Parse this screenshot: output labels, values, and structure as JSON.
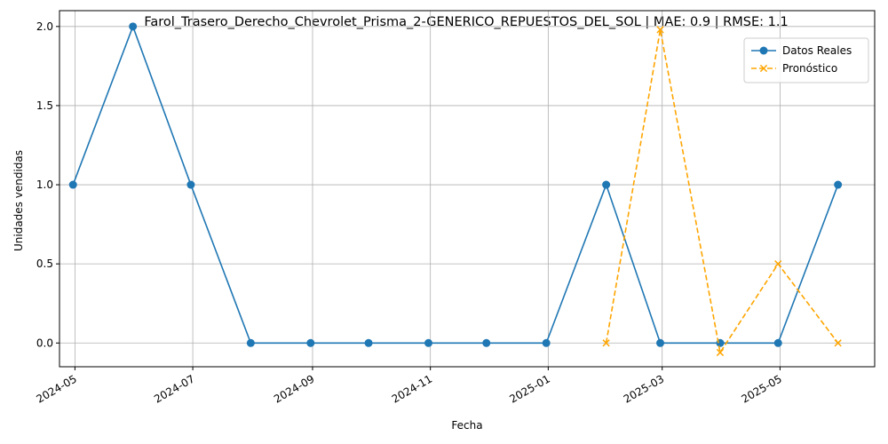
{
  "chart_data": {
    "type": "line",
    "title": "Farol_Trasero_Derecho_Chevrolet_Prisma_2-GENERICO_REPUESTOS_DEL_SOL | MAE: 0.9 | RMSE: 1.1",
    "xlabel": "Fecha",
    "ylabel": "Unidades vendidas",
    "x_ticks": [
      "2024-05",
      "2024-07",
      "2024-09",
      "2024-11",
      "2025-01",
      "2025-03",
      "2025-05"
    ],
    "y_ticks": [
      "0.0",
      "0.5",
      "1.0",
      "1.5",
      "2.0"
    ],
    "ylim": [
      -0.15,
      2.1
    ],
    "xlim": [
      "2024-04-23",
      "2025-06-19"
    ],
    "grid": true,
    "legend_position": "upper right",
    "series": [
      {
        "name": "Datos Reales",
        "color": "#1f77b4",
        "style": "solid",
        "marker": "circle",
        "x": [
          "2024-04-30",
          "2024-05-31",
          "2024-06-30",
          "2024-07-31",
          "2024-08-31",
          "2024-09-30",
          "2024-10-31",
          "2024-11-30",
          "2024-12-31",
          "2025-01-31",
          "2025-02-28",
          "2025-03-31",
          "2025-04-30",
          "2025-05-31"
        ],
        "values": [
          1,
          2,
          1,
          0,
          0,
          0,
          0,
          0,
          0,
          1,
          0,
          0,
          0,
          1
        ]
      },
      {
        "name": "Pronóstico",
        "color": "#ffa500",
        "style": "dashed",
        "marker": "x",
        "x": [
          "2025-01-31",
          "2025-02-28",
          "2025-03-31",
          "2025-04-30",
          "2025-05-31"
        ],
        "values": [
          0.0,
          1.98,
          -0.06,
          0.5,
          0.0
        ]
      }
    ]
  }
}
